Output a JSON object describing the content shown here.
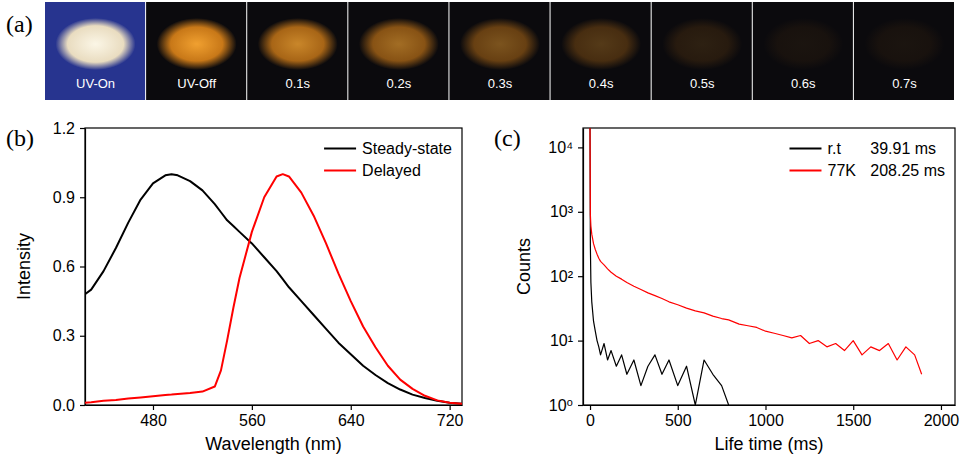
{
  "photo_strip": {
    "panel_label": "(a)",
    "frames": [
      "UV-On",
      "UV-Off",
      "0.1s",
      "0.2s",
      "0.3s",
      "0.4s",
      "0.5s",
      "0.6s",
      "0.7s"
    ]
  },
  "chart_data": [
    {
      "type": "line",
      "panel_label": "(b)",
      "x_label": "Wavelength (nm)",
      "y_label": "Intensity",
      "x": [
        425,
        430,
        440,
        450,
        460,
        470,
        480,
        490,
        495,
        500,
        510,
        520,
        530,
        535,
        540,
        545,
        550,
        560,
        570,
        580,
        585,
        590,
        600,
        610,
        620,
        630,
        640,
        650,
        660,
        670,
        680,
        690,
        700,
        710,
        720,
        730
      ],
      "xlim": [
        425,
        730
      ],
      "xticks": [
        480,
        560,
        640,
        720
      ],
      "ylim": [
        0,
        1.2
      ],
      "yticks": [
        {
          "value": 0,
          "label": "0.0"
        },
        0.3,
        0.6,
        0.9,
        1.2
      ],
      "legend": "upper right",
      "series": [
        {
          "name": "Steady-state",
          "color": "#000000",
          "values": [
            0.48,
            0.5,
            0.58,
            0.68,
            0.79,
            0.89,
            0.96,
            0.995,
            1.0,
            0.995,
            0.97,
            0.93,
            0.87,
            0.835,
            0.8,
            0.775,
            0.75,
            0.7,
            0.64,
            0.58,
            0.545,
            0.51,
            0.45,
            0.39,
            0.33,
            0.27,
            0.22,
            0.17,
            0.13,
            0.095,
            0.067,
            0.045,
            0.03,
            0.018,
            0.01,
            0.005
          ]
        },
        {
          "name": "Delayed",
          "color": "#ff0000",
          "values": [
            0.01,
            0.012,
            0.018,
            0.022,
            0.028,
            0.033,
            0.038,
            0.043,
            0.045,
            0.048,
            0.052,
            0.058,
            0.08,
            0.15,
            0.28,
            0.42,
            0.55,
            0.75,
            0.9,
            0.99,
            1.0,
            0.99,
            0.92,
            0.82,
            0.7,
            0.57,
            0.45,
            0.34,
            0.25,
            0.17,
            0.11,
            0.07,
            0.04,
            0.02,
            0.01,
            0.005
          ]
        }
      ]
    },
    {
      "type": "line",
      "panel_label": "(c)",
      "x_label": "Life time (ms)",
      "y_label": "Counts",
      "log": "y",
      "x": [
        0,
        2,
        5,
        10,
        20,
        30,
        40,
        50,
        60,
        80,
        100,
        120,
        150,
        180,
        210,
        250,
        290,
        330,
        370,
        410,
        450,
        500,
        550,
        600,
        650,
        700,
        750,
        790,
        850,
        900,
        950,
        1000,
        1050,
        1100,
        1150,
        1200,
        1250,
        1300,
        1350,
        1400,
        1450,
        1500,
        1550,
        1600,
        1650,
        1700,
        1750,
        1800,
        1850,
        1890
      ],
      "xlim": [
        -40,
        2080
      ],
      "xticks": [
        0,
        500,
        1000,
        1500,
        2000
      ],
      "ylim": [
        1,
        20000
      ],
      "yticks": [
        {
          "value": 1,
          "label": "10⁰"
        },
        {
          "value": 10,
          "label": "10¹"
        },
        {
          "value": 100,
          "label": "10²"
        },
        {
          "value": 1000,
          "label": "10³"
        },
        {
          "value": 10000,
          "label": "10⁴"
        }
      ],
      "legend": "upper right",
      "series": [
        {
          "name": "r.t",
          "color": "#000000",
          "lifetime_label": "39.91 ms",
          "values": [
            20000,
            300,
            80,
            40,
            20,
            14,
            10,
            8,
            6,
            9,
            5,
            7,
            4,
            6,
            3,
            5,
            2,
            4,
            6,
            3,
            5,
            2,
            4,
            1,
            5,
            3,
            2,
            1,
            null,
            null,
            null,
            null,
            null,
            null,
            null,
            null,
            null,
            null,
            null,
            null,
            null,
            null,
            null,
            null,
            null,
            null,
            null,
            null,
            null,
            null
          ]
        },
        {
          "name": "77K",
          "color": "#ff0000",
          "lifetime_label": "208.25 ms",
          "values": [
            20000,
            900,
            600,
            450,
            320,
            260,
            220,
            190,
            170,
            150,
            130,
            115,
            100,
            90,
            80,
            70,
            62,
            55,
            50,
            45,
            40,
            36,
            32,
            29,
            27,
            24,
            22,
            21,
            18,
            17,
            16,
            14,
            13,
            12,
            11,
            12,
            9,
            10,
            8,
            9,
            7,
            10,
            6,
            8,
            7,
            9,
            5,
            8,
            6,
            3
          ]
        }
      ]
    }
  ]
}
